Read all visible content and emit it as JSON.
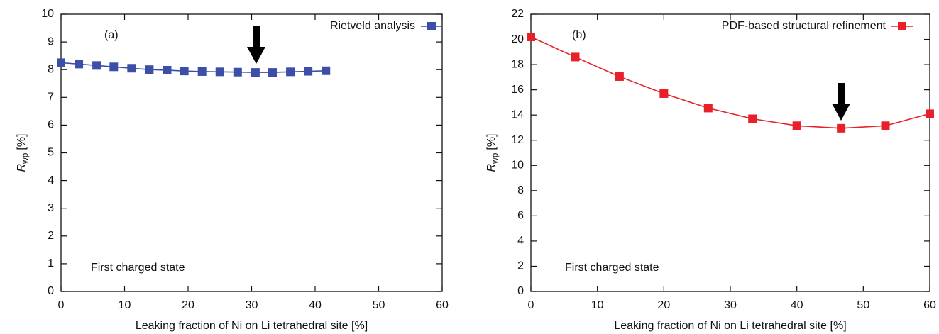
{
  "chart_data": [
    {
      "type": "line",
      "x": [
        0,
        2.8,
        5.6,
        8.3,
        11.1,
        13.9,
        16.7,
        19.4,
        22.2,
        25.0,
        27.8,
        30.6,
        33.3,
        36.1,
        38.9,
        41.7
      ],
      "series": [
        {
          "name": "Rietveld analysis",
          "color": "#3c4ea6",
          "marker": "square",
          "values": [
            8.25,
            8.2,
            8.15,
            8.1,
            8.05,
            8.0,
            7.98,
            7.95,
            7.93,
            7.92,
            7.91,
            7.9,
            7.9,
            7.92,
            7.94,
            7.96
          ]
        }
      ],
      "xlim": [
        0,
        60
      ],
      "xticks": [
        0,
        10,
        20,
        30,
        40,
        50,
        60
      ],
      "ylim": [
        0,
        10
      ],
      "yticks": [
        0,
        1,
        2,
        3,
        4,
        5,
        6,
        7,
        8,
        9,
        10
      ],
      "xlabel": "Leaking fraction of Ni on Li tetrahedral site [%]",
      "ylabel": {
        "symbol": "R",
        "subscript": "wp",
        "unit": "[%]"
      },
      "annotations": [
        "(a)",
        "First charged state"
      ],
      "legend": "upper right"
    },
    {
      "type": "line",
      "x": [
        0,
        6.67,
        13.33,
        20,
        26.67,
        33.33,
        40,
        46.67,
        53.33,
        60
      ],
      "series": [
        {
          "name": "PDF-based structural refinement",
          "color": "#e8202a",
          "marker": "square",
          "values": [
            20.2,
            18.6,
            17.05,
            15.7,
            14.55,
            13.7,
            13.15,
            12.95,
            13.15,
            14.1
          ]
        }
      ],
      "xlim": [
        0,
        60
      ],
      "xticks": [
        0,
        10,
        20,
        30,
        40,
        50,
        60
      ],
      "ylim": [
        0,
        22
      ],
      "yticks": [
        0,
        2,
        4,
        6,
        8,
        10,
        12,
        14,
        16,
        18,
        20,
        22
      ],
      "xlabel": "Leaking fraction of Ni on Li tetrahedral site [%]",
      "ylabel": {
        "symbol": "R",
        "subscript": "wp",
        "unit": "[%]"
      },
      "annotations": [
        "(b)",
        "First charged state"
      ],
      "legend": "upper right"
    }
  ]
}
